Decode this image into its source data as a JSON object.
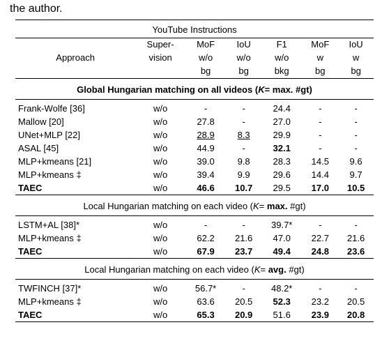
{
  "trailing": "the author.",
  "table": {
    "title": "YouTube Instructions",
    "head": {
      "approach": "Approach",
      "supervision_l1": "Super-",
      "supervision_l2": "vision",
      "c1_l1": "MoF",
      "c1_l2": "w/o",
      "c1_l3": "bg",
      "c2_l1": "IoU",
      "c2_l2": "w/o",
      "c2_l3": "bg",
      "c3_l1": "F1",
      "c3_l2": "w/o",
      "c3_l3": "bkg",
      "c4_l1": "MoF",
      "c4_l2": "w",
      "c4_l3": "bg",
      "c5_l1": "IoU",
      "c5_l2": "w",
      "c5_l3": "bg"
    },
    "sections": [
      {
        "header": "Global Hungarian matching on all videos (K= max. #gt)",
        "bold": true,
        "rows": [
          {
            "approach": "Frank-Wolfe [36]",
            "sup": "w/o",
            "c1": "-",
            "c2": "-",
            "c3": "24.4",
            "c4": "-",
            "c5": "-"
          },
          {
            "approach": "Mallow [20]",
            "sup": "w/o",
            "c1": "27.8",
            "c2": "-",
            "c3": "27.0",
            "c4": "-",
            "c5": "-"
          },
          {
            "approach": "UNet+MLP [22]",
            "sup": "w/o",
            "c1": "28.9",
            "c1u": true,
            "c2": "8.3",
            "c2u": true,
            "c3": "29.9",
            "c4": "-",
            "c5": "-"
          },
          {
            "approach": "ASAL [45]",
            "sup": "w/o",
            "c1": "44.9",
            "c2": "-",
            "c3": "32.1",
            "c3b": true,
            "c4": "-",
            "c5": "-"
          },
          {
            "approach": "MLP+kmeans [21]",
            "sup": "w/o",
            "c1": "39.0",
            "c2": "9.8",
            "c3": "28.3",
            "c4": "14.5",
            "c5": "9.6"
          },
          {
            "approach": "MLP+kmeans ‡",
            "sup": "w/o",
            "c1": "39.4",
            "c2": "9.9",
            "c3": "29.6",
            "c4": "14.4",
            "c5": "9.7"
          },
          {
            "approach": "TAEC",
            "ab": true,
            "sup": "w/o",
            "c1": "46.6",
            "c1b": true,
            "c2": "10.7",
            "c2b": true,
            "c3": "29.5",
            "c4": "17.0",
            "c4b": true,
            "c5": "10.5",
            "c5b": true
          }
        ]
      },
      {
        "header": "Local Hungarian matching on each video (K= max. #gt)",
        "bold": false,
        "emph": "max.",
        "rows": [
          {
            "approach": "LSTM+AL [38]*",
            "sup": "w/o",
            "c1": "-",
            "c2": "-",
            "c3": "39.7*",
            "c4": "-",
            "c5": "-"
          },
          {
            "approach": "MLP+kmeans ‡",
            "sup": "w/o",
            "c1": "62.2",
            "c2": "21.6",
            "c3": "47.0",
            "c4": "22.7",
            "c5": "21.6"
          },
          {
            "approach": "TAEC",
            "ab": true,
            "sup": "w/o",
            "c1": "67.9",
            "c1b": true,
            "c2": "23.7",
            "c2b": true,
            "c3": "49.4",
            "c3b": true,
            "c4": "24.8",
            "c4b": true,
            "c5": "23.6",
            "c5b": true
          }
        ]
      },
      {
        "header": "Local Hungarian matching on each video (K= avg. #gt)",
        "bold": false,
        "emph": "avg.",
        "rows": [
          {
            "approach": "TWFINCH [37]*",
            "sup": "w/o",
            "c1": "56.7*",
            "c2": "-",
            "c3": "48.2*",
            "c4": "-",
            "c5": "-"
          },
          {
            "approach": "MLP+kmeans ‡",
            "sup": "w/o",
            "c1": "63.6",
            "c2": "20.5",
            "c3": "52.3",
            "c3b": true,
            "c4": "23.2",
            "c5": "20.5"
          },
          {
            "approach": "TAEC",
            "ab": true,
            "sup": "w/o",
            "c1": "65.3",
            "c1b": true,
            "c2": "20.9",
            "c2b": true,
            "c3": "51.6",
            "c4": "23.9",
            "c4b": true,
            "c5": "20.8",
            "c5b": true
          }
        ]
      }
    ]
  }
}
